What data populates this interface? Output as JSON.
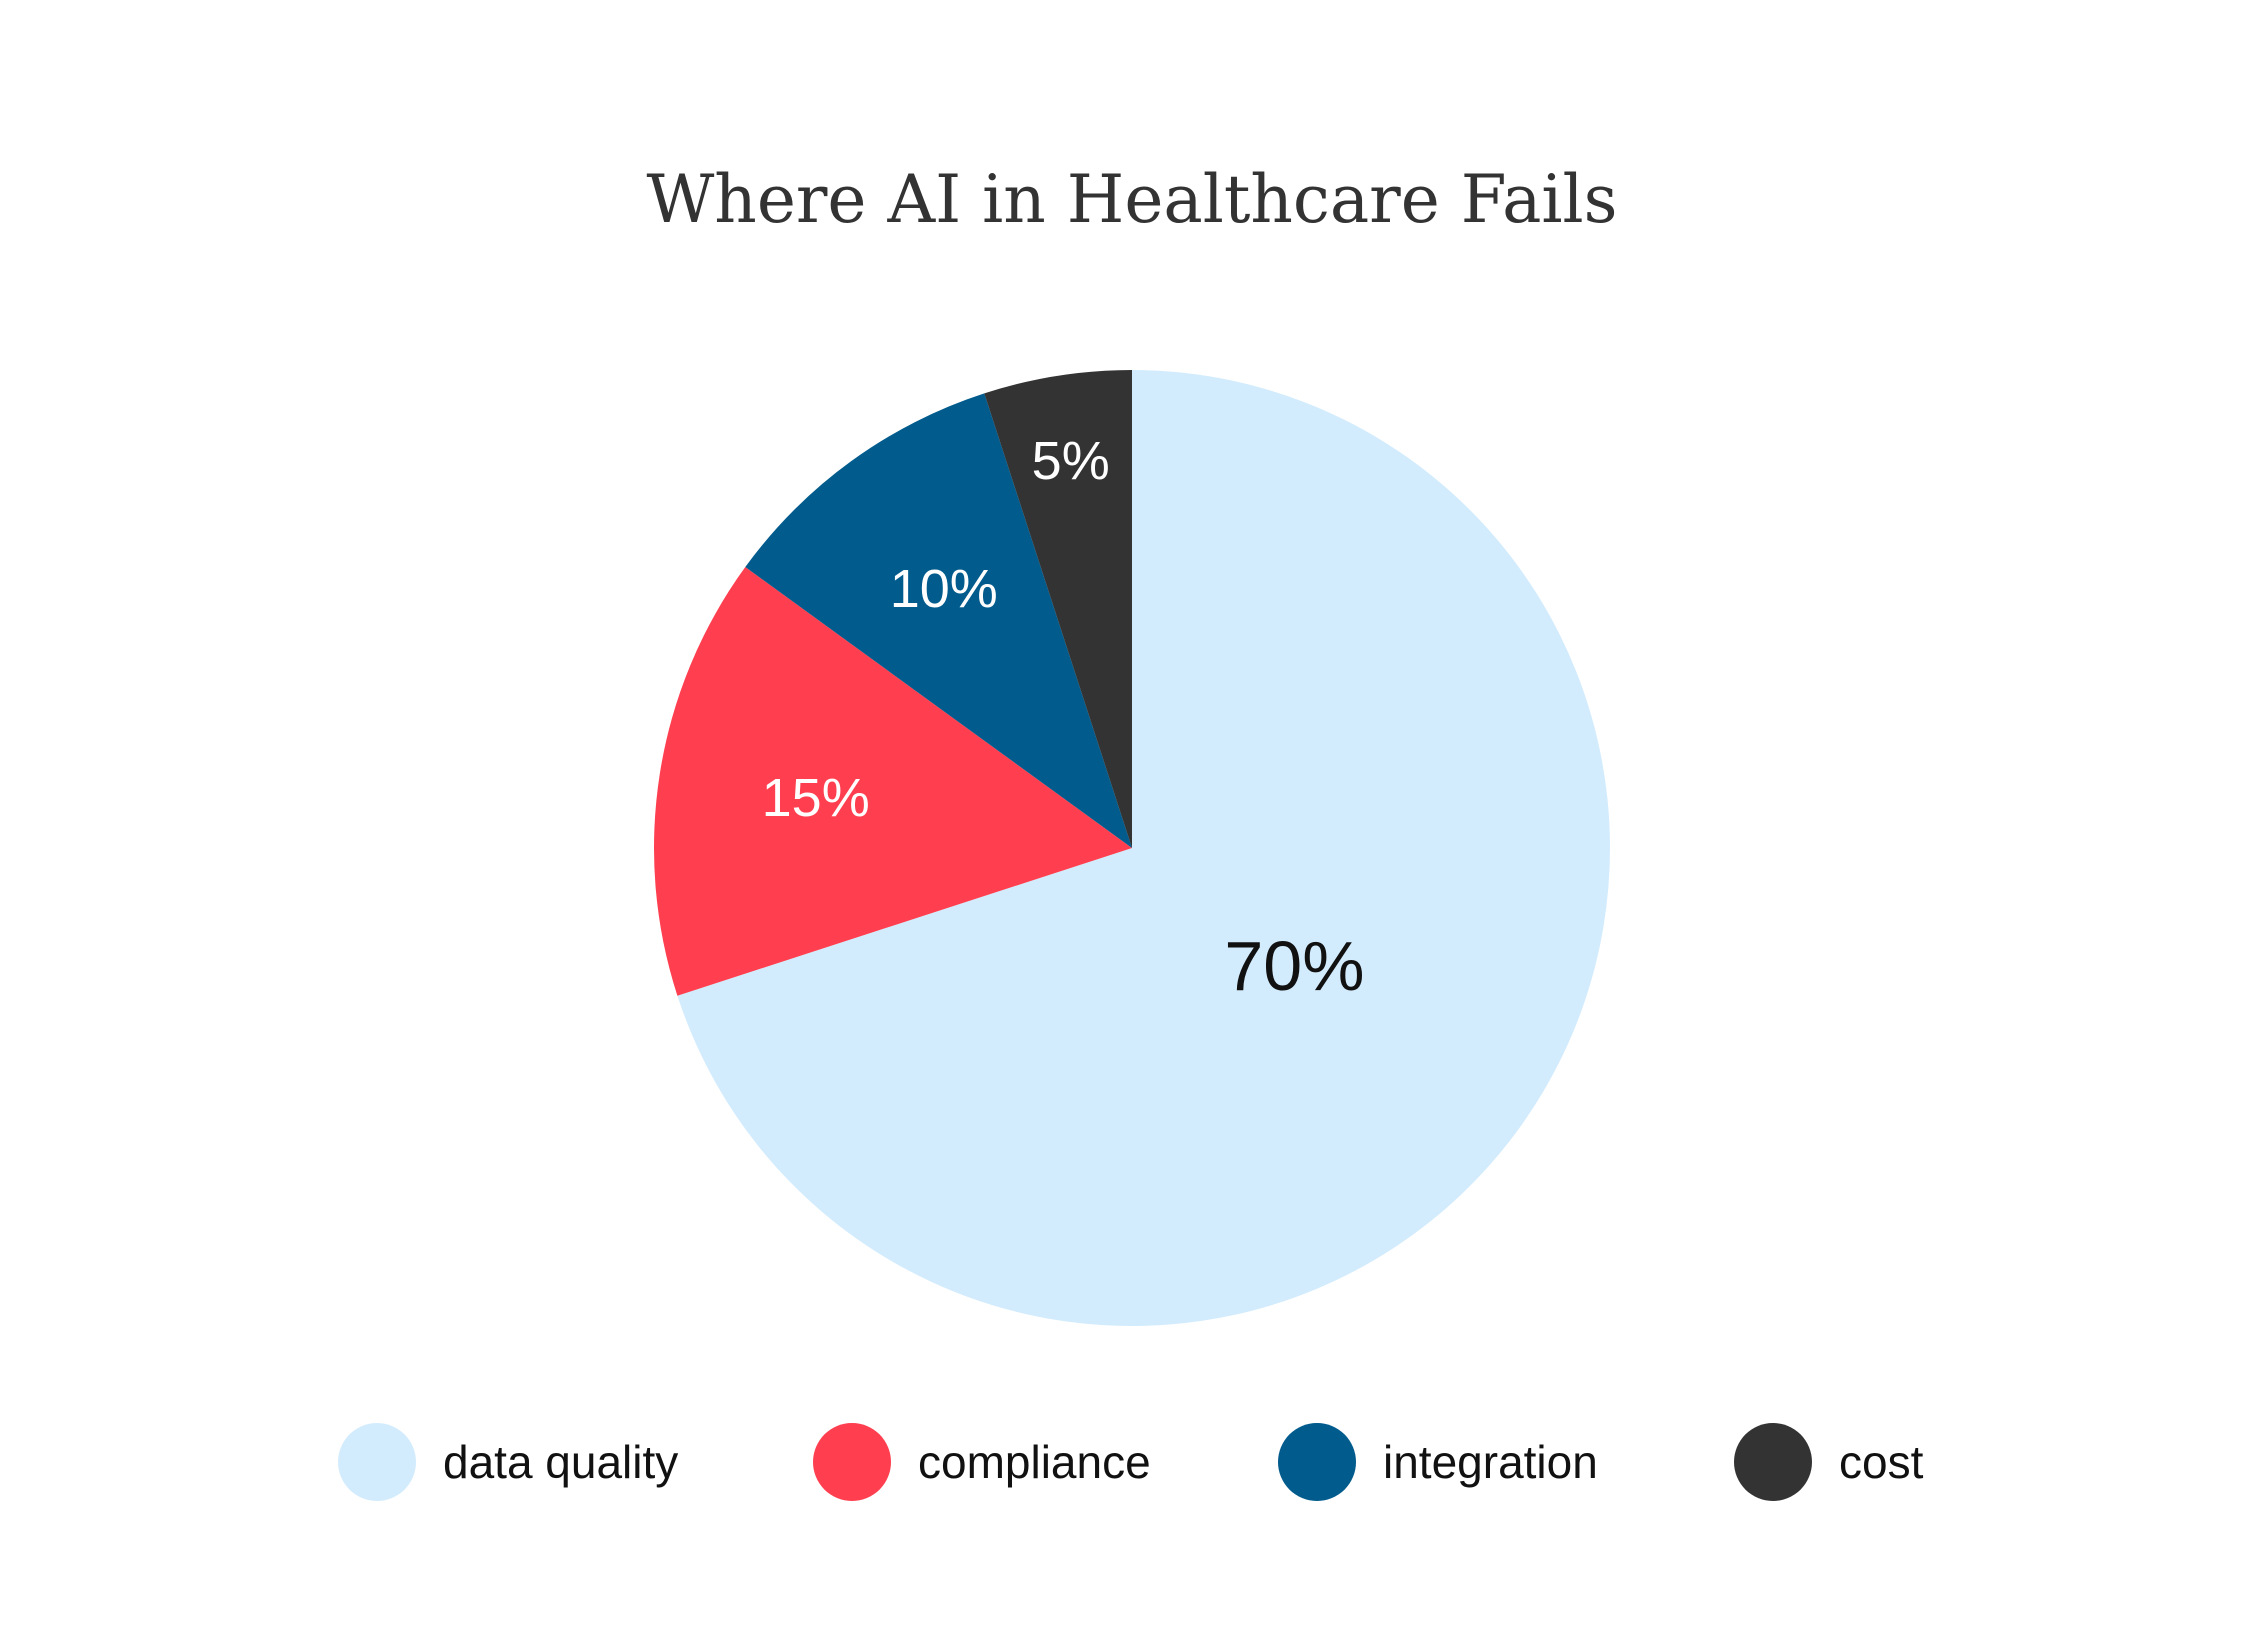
{
  "chart_data": {
    "type": "pie",
    "title": "Where AI in Healthcare Fails",
    "slices": [
      {
        "label": "data quality",
        "value": 70,
        "display": "70%",
        "color": "#d3ecfd",
        "label_color": "#111111"
      },
      {
        "label": "compliance",
        "value": 15,
        "display": "15%",
        "color": "#ff3f4f",
        "label_color": "#ffffff"
      },
      {
        "label": "integration",
        "value": 10,
        "display": "10%",
        "color": "#015b8c",
        "label_color": "#ffffff"
      },
      {
        "label": "cost",
        "value": 5,
        "display": "5%",
        "color": "#333333",
        "label_color": "#ffffff"
      }
    ],
    "start_angle": "12 o'clock",
    "direction": "clockwise",
    "legend_position": "bottom"
  }
}
